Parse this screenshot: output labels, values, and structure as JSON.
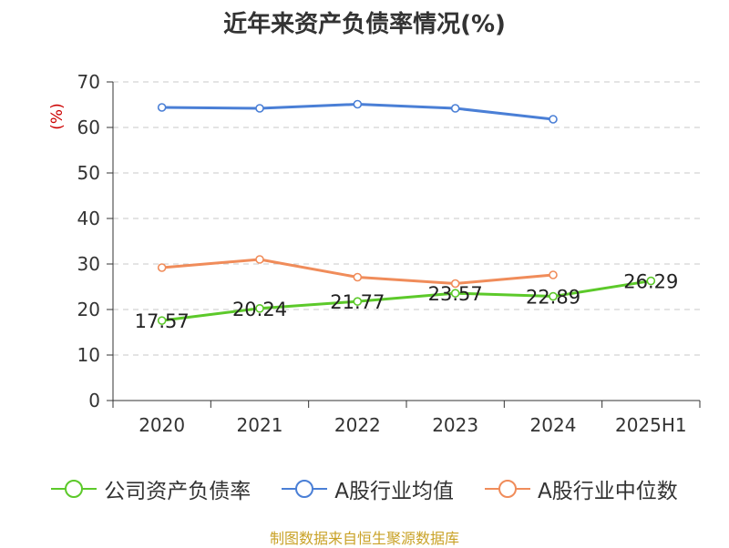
{
  "chart_data": {
    "type": "line",
    "title": "近年来资产负债率情况(%)",
    "ylabel": "(%)",
    "xlabel": "",
    "categories": [
      "2020",
      "2021",
      "2022",
      "2023",
      "2024",
      "2025H1"
    ],
    "ylim": [
      0,
      70
    ],
    "yticks": [
      0,
      10,
      20,
      30,
      40,
      50,
      60,
      70
    ],
    "grid": true,
    "legend_position": "bottom",
    "series": [
      {
        "name": "公司资产负债率",
        "color": "#5cc92a",
        "values": [
          17.57,
          20.24,
          21.77,
          23.57,
          22.89,
          26.29
        ],
        "labels": [
          "17.57",
          "20.24",
          "21.77",
          "23.57",
          "22.89",
          "26.29"
        ]
      },
      {
        "name": "A股行业均值",
        "color": "#4a7fd6",
        "values": [
          64.4,
          64.2,
          65.1,
          64.2,
          61.8,
          null
        ]
      },
      {
        "name": "A股行业中位数",
        "color": "#f08c5a",
        "values": [
          29.2,
          31.0,
          27.1,
          25.7,
          27.6,
          null
        ]
      }
    ]
  },
  "source_note": "制图数据来自恒生聚源数据库"
}
